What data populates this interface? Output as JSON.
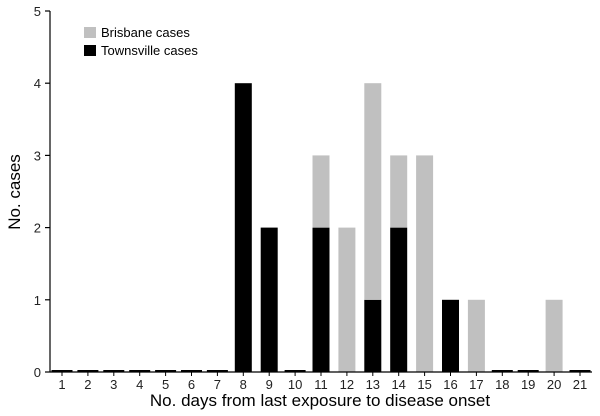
{
  "chart_data": {
    "type": "bar",
    "stacked": true,
    "title": "",
    "xlabel": "No. days from last exposure to disease onset",
    "ylabel": "No. cases",
    "ylim": [
      0,
      5
    ],
    "yticks": [
      0,
      1,
      2,
      3,
      4,
      5
    ],
    "grid": false,
    "legend_position": "top-left",
    "categories": [
      "1",
      "2",
      "3",
      "4",
      "5",
      "6",
      "7",
      "8",
      "9",
      "10",
      "11",
      "12",
      "13",
      "14",
      "15",
      "16",
      "17",
      "18",
      "19",
      "20",
      "21"
    ],
    "series": [
      {
        "name": "Townsville cases",
        "color": "#000000",
        "values": [
          0,
          0,
          0,
          0,
          0,
          0,
          0,
          4,
          2,
          0,
          2,
          0,
          1,
          2,
          0,
          1,
          0,
          0,
          0,
          0,
          0
        ]
      },
      {
        "name": "Brisbane cases",
        "color": "#c0c0c0",
        "values": [
          0,
          0,
          0,
          0,
          0,
          0,
          0,
          0,
          0,
          0,
          1,
          2,
          3,
          1,
          3,
          0,
          1,
          0,
          0,
          1,
          0
        ]
      }
    ],
    "legend_order": [
      "Brisbane cases",
      "Townsville cases"
    ]
  }
}
